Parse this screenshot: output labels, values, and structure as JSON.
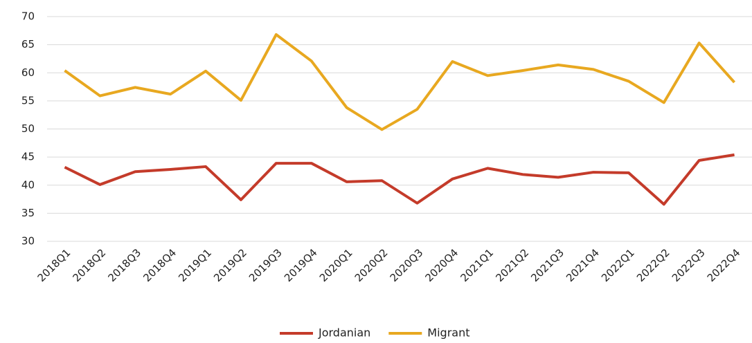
{
  "chart_data": {
    "type": "line",
    "categories": [
      "2018Q1",
      "2018Q2",
      "2018Q3",
      "2018Q4",
      "2019Q1",
      "2019Q2",
      "2019Q3",
      "2019Q4",
      "2020Q1",
      "2020Q2",
      "2020Q3",
      "2020Q4",
      "2021Q1",
      "2021Q2",
      "2021Q3",
      "2021Q4",
      "2022Q1",
      "2022Q2",
      "2022Q3",
      "2022Q4"
    ],
    "series": [
      {
        "name": "Jordanian",
        "color": "#c43b2a",
        "values": [
          43.2,
          40.1,
          42.4,
          42.8,
          43.3,
          37.4,
          43.9,
          43.9,
          40.6,
          40.8,
          36.8,
          41.1,
          43.0,
          41.9,
          41.4,
          42.3,
          42.2,
          36.6,
          44.4,
          45.4
        ]
      },
      {
        "name": "Migrant",
        "color": "#e8a820",
        "values": [
          60.4,
          55.9,
          57.4,
          56.2,
          60.3,
          55.1,
          66.8,
          62.1,
          53.8,
          49.9,
          53.5,
          62.0,
          59.5,
          60.4,
          61.4,
          60.6,
          58.5,
          54.7,
          65.3,
          58.3
        ]
      }
    ],
    "ylim": [
      30,
      70
    ],
    "yticks": [
      30,
      35,
      40,
      45,
      50,
      55,
      60,
      65,
      70
    ],
    "grid": true,
    "legend": "bottom"
  }
}
